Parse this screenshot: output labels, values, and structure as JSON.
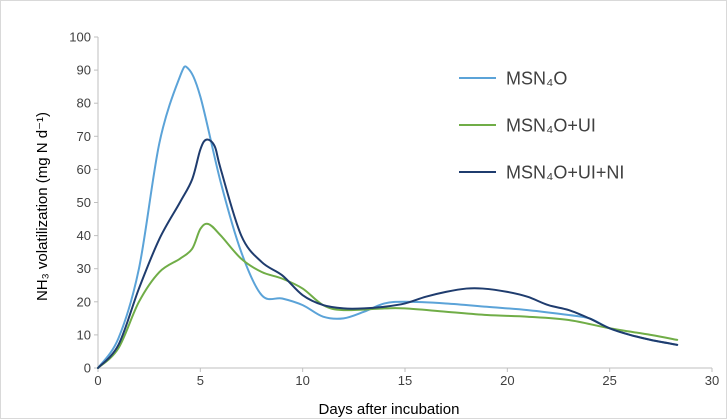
{
  "chart_data": {
    "type": "line",
    "xlabel": "Days after incubation",
    "ylabel": "NH₃ volatilization (mg N d⁻¹)",
    "xlim": [
      0,
      30
    ],
    "ylim": [
      0,
      100
    ],
    "x_ticks": [
      "0",
      "5",
      "10",
      "15",
      "20",
      "25",
      "30"
    ],
    "y_ticks": [
      "0",
      "10",
      "20",
      "30",
      "40",
      "50",
      "60",
      "70",
      "80",
      "90",
      "100"
    ],
    "grid": false,
    "legend_position": "top-right",
    "series": [
      {
        "name": "MSN₄O",
        "color": "#5ba3d8",
        "points": [
          [
            0,
            0
          ],
          [
            1,
            9
          ],
          [
            2,
            30
          ],
          [
            3,
            68
          ],
          [
            4,
            88
          ],
          [
            4.4,
            90.5
          ],
          [
            5,
            82
          ],
          [
            6,
            56
          ],
          [
            7,
            35
          ],
          [
            8,
            22
          ],
          [
            9,
            21
          ],
          [
            10,
            19
          ],
          [
            11,
            15.5
          ],
          [
            12,
            15
          ],
          [
            13,
            17
          ],
          [
            14,
            19.5
          ],
          [
            15,
            20
          ],
          [
            17,
            19.5
          ],
          [
            19,
            18.5
          ],
          [
            21,
            17.5
          ],
          [
            23,
            16
          ],
          [
            24,
            15
          ],
          [
            25,
            12
          ],
          [
            26,
            10
          ],
          [
            27,
            8.5
          ],
          [
            28.3,
            7
          ]
        ]
      },
      {
        "name": "MSN₄O+UI",
        "color": "#70ad47",
        "points": [
          [
            0,
            0
          ],
          [
            1,
            6
          ],
          [
            2,
            20
          ],
          [
            3,
            29
          ],
          [
            4,
            33
          ],
          [
            4.6,
            36
          ],
          [
            5,
            42
          ],
          [
            5.4,
            43.5
          ],
          [
            6,
            40
          ],
          [
            7,
            33
          ],
          [
            8,
            29
          ],
          [
            9,
            27
          ],
          [
            10,
            24
          ],
          [
            11,
            19
          ],
          [
            12,
            17.5
          ],
          [
            14,
            18
          ],
          [
            15,
            18
          ],
          [
            17,
            17
          ],
          [
            19,
            16
          ],
          [
            21,
            15.5
          ],
          [
            23,
            14.5
          ],
          [
            25,
            12
          ],
          [
            27,
            10
          ],
          [
            28.3,
            8.5
          ]
        ]
      },
      {
        "name": "MSN₄O+UI+NI",
        "color": "#1f3c6e",
        "points": [
          [
            0,
            0
          ],
          [
            1,
            7
          ],
          [
            2,
            24
          ],
          [
            3,
            39
          ],
          [
            4,
            50
          ],
          [
            4.6,
            57
          ],
          [
            5,
            66
          ],
          [
            5.3,
            69
          ],
          [
            5.7,
            67
          ],
          [
            6,
            60
          ],
          [
            7,
            40
          ],
          [
            8,
            32
          ],
          [
            9,
            28
          ],
          [
            10,
            22
          ],
          [
            11,
            19
          ],
          [
            12,
            18
          ],
          [
            13,
            18
          ],
          [
            14,
            18.5
          ],
          [
            15,
            19.5
          ],
          [
            16,
            21.5
          ],
          [
            17,
            23
          ],
          [
            18,
            24
          ],
          [
            18.8,
            24
          ],
          [
            20,
            23
          ],
          [
            21,
            21.5
          ],
          [
            22,
            19
          ],
          [
            23,
            17.5
          ],
          [
            24,
            15
          ],
          [
            25,
            12
          ],
          [
            26,
            10
          ],
          [
            27,
            8.5
          ],
          [
            28.3,
            7
          ]
        ]
      }
    ]
  }
}
